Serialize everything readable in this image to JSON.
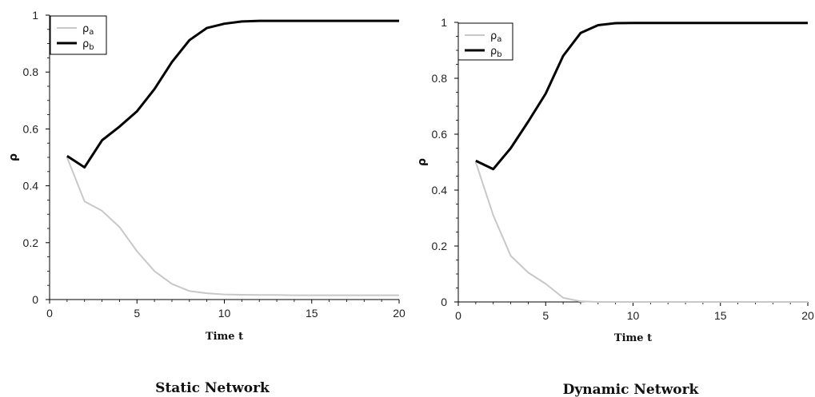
{
  "chart_data": [
    {
      "type": "line",
      "caption": "Static Network",
      "xlabel": "Time t",
      "ylabel": "ρ",
      "xlim": [
        0,
        20
      ],
      "ylim": [
        0,
        1
      ],
      "x_ticks": [
        "0",
        "5",
        "10",
        "15",
        "20"
      ],
      "y_ticks": [
        "0",
        "0.2",
        "0.4",
        "0.6",
        "0.8",
        "1"
      ],
      "legend_position": "top-left",
      "x": [
        1,
        2,
        3,
        4,
        5,
        6,
        7,
        8,
        9,
        10,
        11,
        12,
        13,
        14,
        15,
        16,
        17,
        18,
        19,
        20
      ],
      "series": [
        {
          "name": "ρ",
          "subscript": "a",
          "color": "#c8c8c8",
          "values": [
            0.5,
            0.345,
            0.312,
            0.255,
            0.17,
            0.1,
            0.055,
            0.03,
            0.022,
            0.018,
            0.017,
            0.016,
            0.016,
            0.015,
            0.015,
            0.015,
            0.015,
            0.015,
            0.015,
            0.015
          ]
        },
        {
          "name": "ρ",
          "subscript": "b",
          "color": "#000000",
          "values": [
            0.505,
            0.465,
            0.56,
            0.608,
            0.662,
            0.74,
            0.835,
            0.912,
            0.955,
            0.97,
            0.978,
            0.98,
            0.98,
            0.98,
            0.98,
            0.98,
            0.98,
            0.98,
            0.98,
            0.98
          ]
        }
      ]
    },
    {
      "type": "line",
      "caption": "Dynamic Network",
      "xlabel": "Time t",
      "ylabel": "ρ",
      "xlim": [
        0,
        20
      ],
      "ylim": [
        0,
        1
      ],
      "x_ticks": [
        "0",
        "5",
        "10",
        "15",
        "20"
      ],
      "y_ticks": [
        "0",
        "0.2",
        "0.4",
        "0.6",
        "0.8",
        "1"
      ],
      "legend_position": "top-left",
      "x": [
        1,
        2,
        3,
        4,
        5,
        6,
        7,
        8,
        9,
        10,
        11,
        12,
        13,
        14,
        15,
        16,
        17,
        18,
        19,
        20
      ],
      "series": [
        {
          "name": "ρ",
          "subscript": "a",
          "color": "#c8c8c8",
          "values": [
            0.5,
            0.31,
            0.165,
            0.105,
            0.065,
            0.015,
            0.002,
            0.0,
            0.0,
            0.0,
            0.0,
            0.0,
            0.0,
            0.0,
            0.0,
            0.0,
            0.0,
            0.0,
            0.0,
            0.0
          ]
        },
        {
          "name": "ρ",
          "subscript": "b",
          "color": "#000000",
          "values": [
            0.505,
            0.475,
            0.55,
            0.645,
            0.745,
            0.88,
            0.962,
            0.99,
            0.997,
            0.998,
            0.998,
            0.998,
            0.998,
            0.998,
            0.998,
            0.998,
            0.998,
            0.998,
            0.998,
            0.998
          ]
        }
      ]
    }
  ]
}
